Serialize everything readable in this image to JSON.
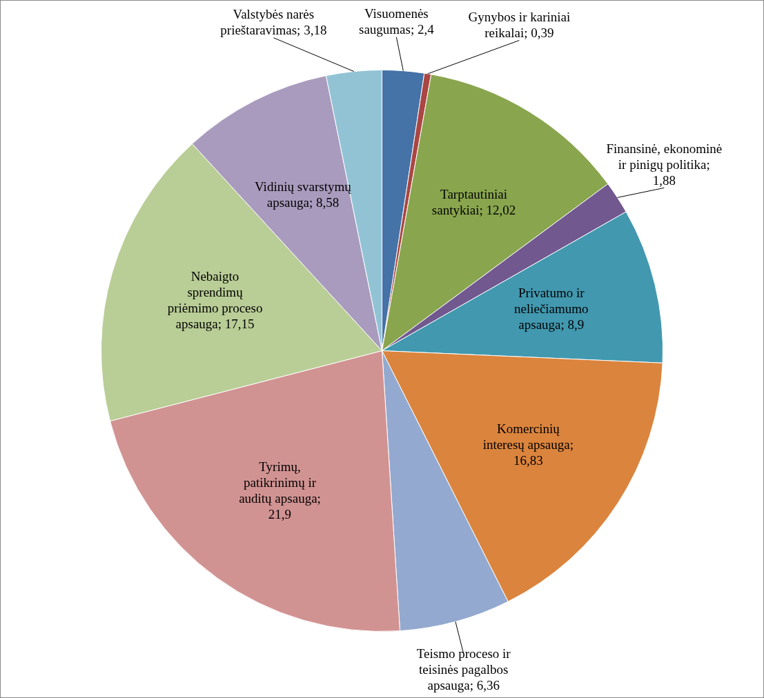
{
  "chart_data": {
    "type": "pie",
    "categories": [
      "Visuomenės saugumas; 2,4",
      "Gynybos ir kariniai reikalai; 0,39",
      "Tarptautiniai santykiai; 12,02",
      "Finansinė, ekonominė ir pinigų politika; 1,88",
      "Privatumo ir neliečiamumo apsauga; 8,9",
      "Komercinių interesų apsauga; 16,83",
      "Teismo proceso ir teisinės pagalbos apsauga; 6,36",
      "Tyrimų, patikrinimų ir auditų apsauga; 21,9",
      "Nebaigto sprendimų priėmimo proceso apsauga; 17,15",
      "Vidinių svarstymų apsauga; 8,58",
      "Valstybės narės prieštaravimas; 3,18"
    ],
    "values": [
      2.4,
      0.39,
      12.02,
      1.88,
      8.9,
      16.83,
      6.36,
      21.9,
      17.15,
      8.58,
      3.18
    ],
    "colors": [
      "#4572a7",
      "#aa4643",
      "#89a54e",
      "#71588f",
      "#4198af",
      "#db843d",
      "#93a9cf",
      "#d19392",
      "#b9cd96",
      "#a99bbd",
      "#92c3d4"
    ],
    "legend": false
  }
}
